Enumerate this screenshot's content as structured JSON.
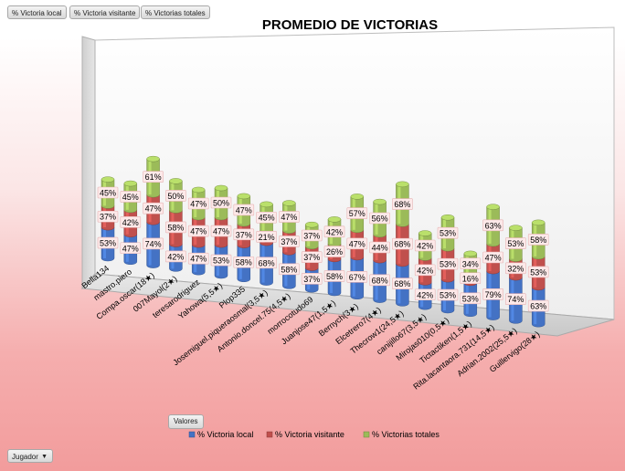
{
  "filters": {
    "local_label": "% Victoria local",
    "visitante_label": "% Victoria visitante",
    "totales_label": "% Victorias totales",
    "values_label": "Valores",
    "jugador_label": "Jugador"
  },
  "chart_data": {
    "type": "bar",
    "stacked": true,
    "three_d": true,
    "title": "PROMEDIO DE VICTORIAS",
    "xlabel": "",
    "ylabel": "",
    "legend_position": "bottom",
    "categories": [
      "Bella134",
      "mastro.piero",
      "Compa.oscar(18★)",
      "007Mayol(2★)",
      "teresarodriguez",
      "Yahowa(5,5★)",
      "Plop335",
      "Josemiguel.piqueraosmal(3,5★)",
      "Antonio.doncel.75(4,5★)",
      "morrocotudo69",
      "Juanjose47(1,5★)",
      "Bernych(3★)",
      "Elcetrero7(4★)",
      "Thecrow1(24,5★)",
      "canijillo67(3,5★)",
      "Mirojas010(0,5★)",
      "Tictactiken(1,5★)",
      "Rita.lacantaora.731(14,5★)",
      "Adrian.2002(25,5★)",
      "Guillervigo(28★)"
    ],
    "series": [
      {
        "name": "% Victoria local",
        "color": "#4472c4",
        "values": [
          0.53,
          0.47,
          0.74,
          0.42,
          0.47,
          0.53,
          0.58,
          0.68,
          0.58,
          0.37,
          0.58,
          0.67,
          0.68,
          0.68,
          0.42,
          0.53,
          0.53,
          0.79,
          0.74,
          0.63
        ],
        "labels": [
          "53%",
          "47%",
          "74%",
          "42%",
          "47%",
          "53%",
          "58%",
          "68%",
          "58%",
          "37%",
          "58%",
          "67%",
          "68%",
          "68%",
          "42%",
          "53%",
          "53%",
          "79%",
          "74%",
          "63%"
        ]
      },
      {
        "name": "% Victoria visitante",
        "color": "#c0504d",
        "values": [
          0.37,
          0.42,
          0.47,
          0.58,
          0.47,
          0.47,
          0.37,
          0.21,
          0.37,
          0.37,
          0.26,
          0.47,
          0.44,
          0.68,
          0.42,
          0.53,
          0.16,
          0.47,
          0.32,
          0.53
        ],
        "labels": [
          "37%",
          "42%",
          "47%",
          "58%",
          "47%",
          "47%",
          "37%",
          "21%",
          "37%",
          "37%",
          "26%",
          "47%",
          "44%",
          "68%",
          "42%",
          "53%",
          "16%",
          "47%",
          "32%",
          "53%"
        ]
      },
      {
        "name": "% Victorias totales",
        "color": "#9bbb59",
        "values": [
          0.45,
          0.45,
          0.61,
          0.5,
          0.47,
          0.5,
          0.47,
          0.45,
          0.47,
          0.37,
          0.42,
          0.57,
          0.56,
          0.68,
          0.42,
          0.53,
          0.34,
          0.63,
          0.53,
          0.58
        ],
        "labels": [
          "45%",
          "45%",
          "61%",
          "50%",
          "47%",
          "50%",
          "47%",
          "45%",
          "47%",
          "37%",
          "42%",
          "57%",
          "56%",
          "68%",
          "42%",
          "53%",
          "34%",
          "63%",
          "53%",
          "58%"
        ]
      }
    ]
  }
}
